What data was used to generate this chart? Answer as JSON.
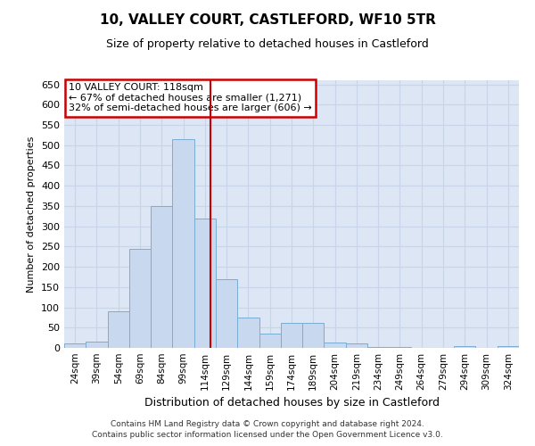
{
  "title": "10, VALLEY COURT, CASTLEFORD, WF10 5TR",
  "subtitle": "Size of property relative to detached houses in Castleford",
  "xlabel": "Distribution of detached houses by size in Castleford",
  "ylabel": "Number of detached properties",
  "bar_labels": [
    "24sqm",
    "39sqm",
    "54sqm",
    "69sqm",
    "84sqm",
    "99sqm",
    "114sqm",
    "129sqm",
    "144sqm",
    "159sqm",
    "174sqm",
    "189sqm",
    "204sqm",
    "219sqm",
    "234sqm",
    "249sqm",
    "264sqm",
    "279sqm",
    "294sqm",
    "309sqm",
    "324sqm"
  ],
  "bar_values": [
    10,
    15,
    90,
    245,
    350,
    515,
    320,
    170,
    75,
    35,
    62,
    62,
    14,
    10,
    3,
    3,
    0,
    0,
    5,
    0,
    5
  ],
  "bar_color": "#c8d9ef",
  "bar_edge_color": "#7aadd4",
  "bar_width": 1.0,
  "property_line_x": 6.27,
  "annotation_title": "10 VALLEY COURT: 118sqm",
  "annotation_line1": "← 67% of detached houses are smaller (1,271)",
  "annotation_line2": "32% of semi-detached houses are larger (606) →",
  "annotation_box_color": "#cc0000",
  "ylim": [
    0,
    660
  ],
  "yticks": [
    0,
    50,
    100,
    150,
    200,
    250,
    300,
    350,
    400,
    450,
    500,
    550,
    600,
    650
  ],
  "grid_color": "#c8d4e8",
  "background_color": "#dce6f5",
  "footer1": "Contains HM Land Registry data © Crown copyright and database right 2024.",
  "footer2": "Contains public sector information licensed under the Open Government Licence v3.0.",
  "title_fontsize": 11,
  "subtitle_fontsize": 9,
  "ylabel_fontsize": 8,
  "xlabel_fontsize": 9,
  "tick_fontsize": 7.5,
  "ytick_fontsize": 8,
  "ann_fontsize": 8
}
